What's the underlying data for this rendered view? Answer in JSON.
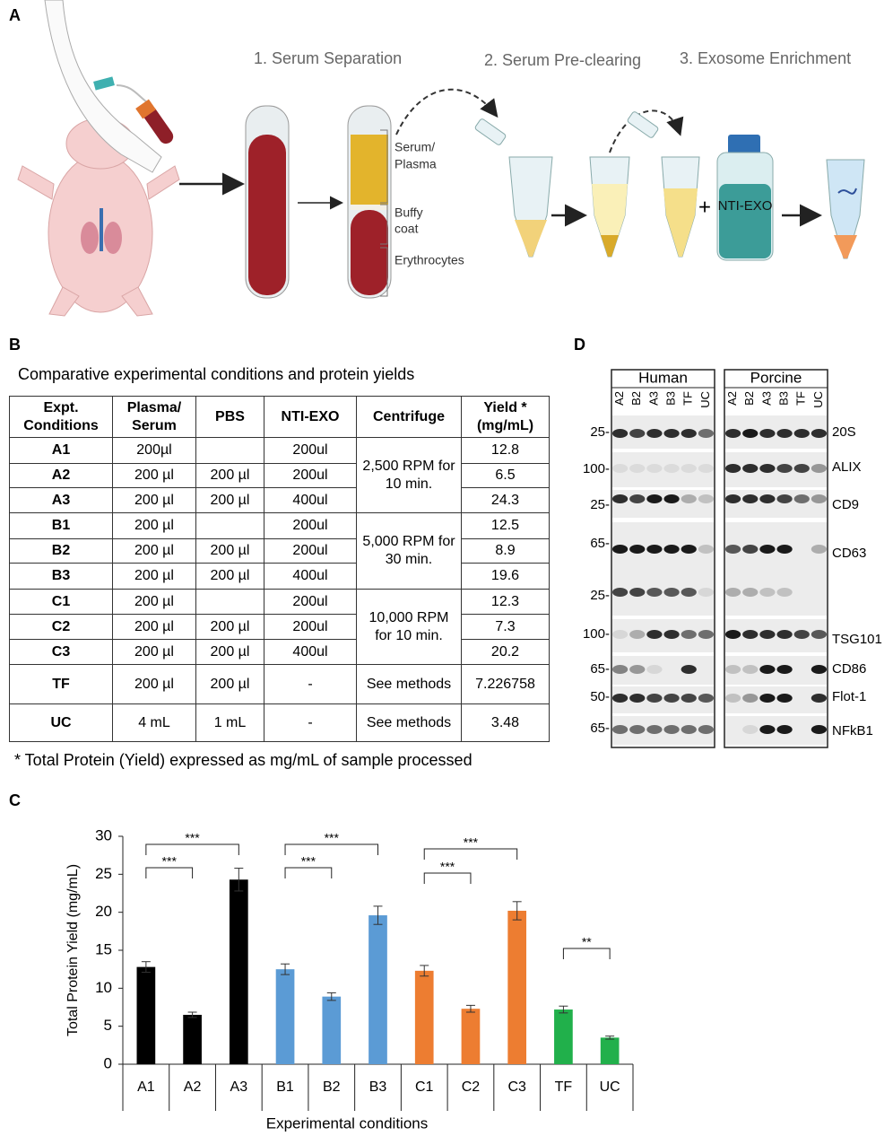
{
  "panel_a": {
    "label": "A",
    "steps": [
      "1.  Serum Separation",
      "2. Serum Pre-clearing",
      "3. Exosome Enrichment"
    ],
    "layers": [
      "Serum/",
      "Plasma",
      "Buffy",
      "coat",
      "Erythrocytes"
    ],
    "plus": "+",
    "reagent": "NTI-EXO"
  },
  "panel_b": {
    "label": "B",
    "caption": "Comparative experimental conditions and protein yields",
    "header": [
      "Expt. Conditions",
      "Plasma/ Serum",
      "PBS",
      "NTI-EXO",
      "Centrifuge",
      "Yield * (mg/mL)"
    ],
    "rows": [
      [
        "A1",
        "200µl",
        null,
        "200ul",
        "12.8"
      ],
      [
        "A2",
        "200 µl",
        "200 µl",
        "200ul",
        "6.5"
      ],
      [
        "A3",
        "200 µl",
        "200 µl",
        "400ul",
        "24.3"
      ],
      [
        "B1",
        "200 µl",
        null,
        "200ul",
        "12.5"
      ],
      [
        "B2",
        "200 µl",
        "200 µl",
        "200ul",
        "8.9"
      ],
      [
        "B3",
        "200 µl",
        "200 µl",
        "400ul",
        "19.6"
      ],
      [
        "C1",
        "200 µl",
        null,
        "200ul",
        "12.3"
      ],
      [
        "C2",
        "200 µl",
        "200 µl",
        "200ul",
        "7.3"
      ],
      [
        "C3",
        "200 µl",
        "200 µl",
        "400ul",
        "20.2"
      ],
      [
        "TF",
        "200 µl",
        "200 µl",
        "-",
        "7.226758"
      ],
      [
        "UC",
        "4 mL",
        "1 mL",
        "-",
        "3.48"
      ]
    ],
    "centrifuge": [
      {
        "text": "2,500 RPM for 10 min.",
        "rows": 3
      },
      {
        "text": "5,000 RPM for 30 min.",
        "rows": 3
      },
      {
        "text": "10,000 RPM for 10 min.",
        "rows": 3
      },
      {
        "text": "See methods",
        "rows": 1
      },
      {
        "text": "See methods",
        "rows": 1
      }
    ],
    "footnote": "* Total Protein (Yield) expressed as mg/mL of sample processed"
  },
  "chart_data": {
    "type": "bar",
    "label": "C",
    "ylabel": "Total Protein Yield (mg/mL)",
    "xlabel": "Experimental conditions",
    "categories": [
      "A1",
      "A2",
      "A3",
      "B1",
      "B2",
      "B3",
      "C1",
      "C2",
      "C3",
      "TF",
      "UC"
    ],
    "values": [
      12.8,
      6.5,
      24.3,
      12.5,
      8.9,
      19.6,
      12.3,
      7.3,
      20.2,
      7.2,
      3.5
    ],
    "errors": [
      0.7,
      0.35,
      1.5,
      0.7,
      0.5,
      1.2,
      0.7,
      0.45,
      1.2,
      0.45,
      0.2
    ],
    "colors": [
      "#000000",
      "#000000",
      "#000000",
      "#5b9bd5",
      "#5b9bd5",
      "#5b9bd5",
      "#ed7d31",
      "#ed7d31",
      "#ed7d31",
      "#21b04b",
      "#21b04b"
    ],
    "ylim": [
      0,
      30
    ],
    "yticks": [
      0,
      5,
      10,
      15,
      20,
      25,
      30
    ],
    "annotations": [
      {
        "from": "A1",
        "to": "A2",
        "label": "***"
      },
      {
        "from": "A1",
        "to": "A3",
        "label": "***"
      },
      {
        "from": "B1",
        "to": "B2",
        "label": "***"
      },
      {
        "from": "B1",
        "to": "B3",
        "label": "***"
      },
      {
        "from": "C1",
        "to": "C2",
        "label": "***"
      },
      {
        "from": "C1",
        "to": "C3",
        "label": "***"
      },
      {
        "from": "TF",
        "to": "UC",
        "label": "**"
      }
    ]
  },
  "panel_d": {
    "label": "D",
    "groups": [
      "Human",
      "Porcine"
    ],
    "lanes": [
      "A2",
      "B2",
      "A3",
      "B3",
      "TF",
      "UC"
    ],
    "markers": [
      "25-",
      "100-",
      "25-",
      "65-",
      "25-",
      "100-",
      "65-",
      "50-",
      "65-"
    ],
    "proteins": [
      "20S",
      "ALIX",
      "CD9",
      "CD63",
      "TSG101",
      "CD86",
      "Flot-1",
      "NFkB1"
    ]
  }
}
